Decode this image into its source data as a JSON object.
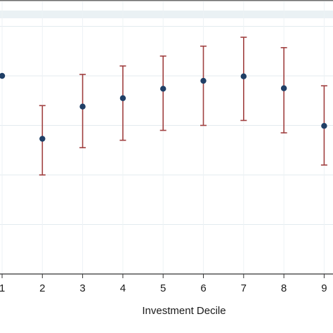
{
  "chart_data": {
    "type": "scatter",
    "subtype": "point-with-error-bars",
    "xlabel": "Investment Decile",
    "ylabel": "",
    "title": "",
    "x": [
      1,
      2,
      3,
      4,
      5,
      6,
      7,
      8,
      9
    ],
    "x_tick_labels": [
      "1",
      "2",
      "3",
      "4",
      "5",
      "6",
      "7",
      "8",
      "9"
    ],
    "ylim": [
      0,
      5.5
    ],
    "y_gridlines": [
      0,
      1,
      2,
      3,
      4,
      5
    ],
    "series": [
      {
        "point_color": "#1f3f66",
        "error_bar_color": "#a04040",
        "estimate": [
          4.0,
          2.73,
          3.38,
          3.55,
          3.74,
          3.9,
          3.99,
          3.75,
          2.99
        ],
        "ci_low": [
          null,
          2.0,
          2.55,
          2.7,
          2.9,
          3.0,
          3.1,
          2.85,
          2.2
        ],
        "ci_high": [
          null,
          3.4,
          4.03,
          4.2,
          4.4,
          4.6,
          4.78,
          4.57,
          3.8
        ]
      }
    ],
    "grid": true,
    "background": "#ffffff",
    "legend": "none"
  }
}
